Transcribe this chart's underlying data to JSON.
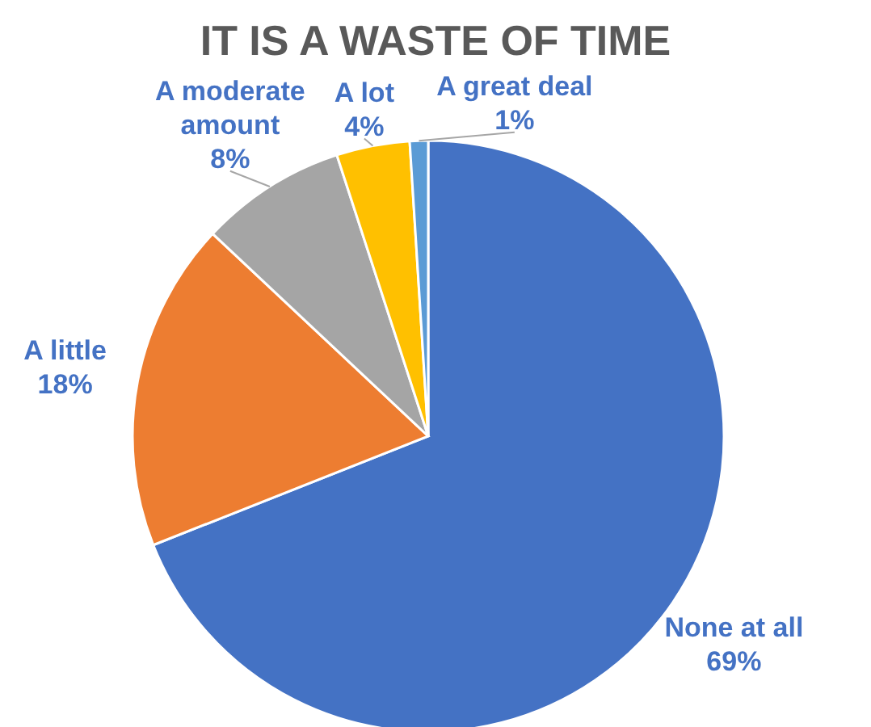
{
  "chart_data": {
    "type": "pie",
    "title": "IT IS A WASTE OF TIME",
    "categories": [
      "None at all",
      "A little",
      "A moderate amount",
      "A lot",
      "A great deal"
    ],
    "values": [
      69,
      18,
      8,
      4,
      1
    ],
    "colors": [
      "#4472c4",
      "#ed7d31",
      "#a5a5a5",
      "#ffc000",
      "#5b9bd5"
    ],
    "value_labels": [
      "69%",
      "18%",
      "8%",
      "4%",
      "1%"
    ]
  }
}
